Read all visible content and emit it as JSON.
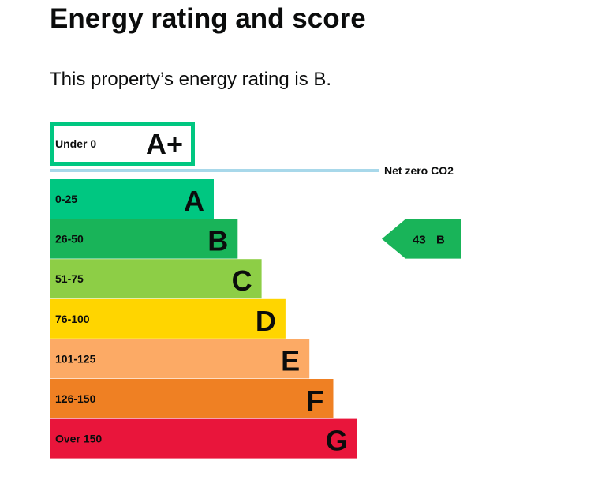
{
  "heading": "Energy rating and score",
  "summary": "This property’s energy rating is B.",
  "chart_data": {
    "type": "bar",
    "title": "",
    "categories": [
      "A+",
      "A",
      "B",
      "C",
      "D",
      "E",
      "F",
      "G"
    ],
    "bands": [
      {
        "letter": "A+",
        "range": "Under 0",
        "style": "outline",
        "color": "#00c781"
      },
      {
        "letter": "A",
        "range": "0-25",
        "color": "#00c781"
      },
      {
        "letter": "B",
        "range": "26-50",
        "color": "#19b459"
      },
      {
        "letter": "C",
        "range": "51-75",
        "color": "#8dce46"
      },
      {
        "letter": "D",
        "range": "76-100",
        "color": "#ffd500"
      },
      {
        "letter": "E",
        "range": "101-125",
        "color": "#fcaa65"
      },
      {
        "letter": "F",
        "range": "126-150",
        "color": "#ef8023"
      },
      {
        "letter": "G",
        "range": "Over 150",
        "color": "#e9153b"
      }
    ],
    "net_zero_label": "Net zero CO2",
    "net_zero_line_color": "#a8d8ea",
    "current": {
      "score": 43,
      "band": "B",
      "color": "#19b459"
    }
  }
}
